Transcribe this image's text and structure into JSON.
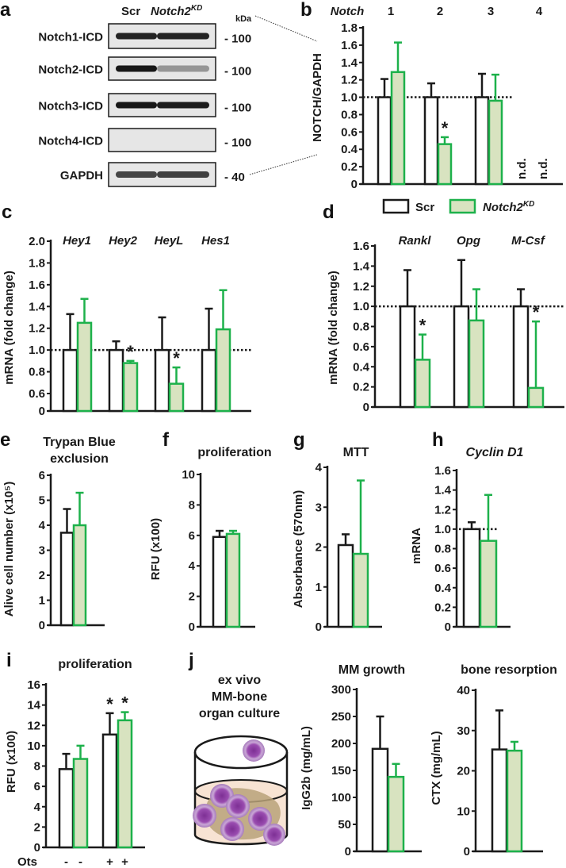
{
  "panel_letters": {
    "a": "a",
    "b": "b",
    "c": "c",
    "d": "d",
    "e": "e",
    "f": "f",
    "g": "g",
    "h": "h",
    "i": "i",
    "j": "j"
  },
  "colors": {
    "scr_stroke": "#1a1a1a",
    "scr_fill": "#ffffff",
    "kd_stroke": "#1db14b",
    "kd_fill": "#d8e3c0",
    "cell_fill": "#8e3fa0",
    "cell_edge": "#c9a6d6"
  },
  "blot": {
    "col_scr": "Scr",
    "col_kd_base": "Notch2",
    "col_kd_sup": "KD",
    "unit": "kDa",
    "rows": [
      {
        "label": "Notch1-ICD",
        "marker": "- 100"
      },
      {
        "label": "Notch2-ICD",
        "marker": "- 100"
      },
      {
        "label": "Notch3-ICD",
        "marker": "- 100"
      },
      {
        "label": "Notch4-ICD",
        "marker": "- 100"
      },
      {
        "label": "GAPDH",
        "marker": "- 40"
      }
    ]
  },
  "legend": {
    "scr": "Scr",
    "kd_base": "Notch2",
    "kd_sup": "KD"
  },
  "illustration": {
    "lines": [
      "ex vivo",
      "MM-bone",
      "organ culture"
    ]
  },
  "chart_data": [
    {
      "id": "b",
      "type": "bar",
      "header": "Notch",
      "title": "",
      "ylabel": "NOTCH/GAPDH",
      "ylim": [
        0,
        1.8
      ],
      "yticks": [
        "0",
        "0.2",
        "0.4",
        "0.6",
        "0.8",
        "1.0",
        "1.2",
        "1.4",
        "1.6",
        "1.8"
      ],
      "categories": [
        "1",
        "2",
        "3",
        "4"
      ],
      "reference_line": 1.0,
      "series": [
        {
          "name": "Scr",
          "values": [
            1.0,
            1.0,
            1.0,
            null
          ],
          "errors": [
            0.21,
            0.16,
            0.27,
            null
          ]
        },
        {
          "name": "Notch2KD",
          "values": [
            1.29,
            0.46,
            0.96,
            null
          ],
          "errors": [
            0.34,
            0.08,
            0.3,
            null
          ]
        }
      ],
      "significant": [
        {
          "category": 1,
          "series": 1,
          "mark": "*"
        }
      ],
      "not_detected": {
        "category": 3,
        "label": "n.d."
      }
    },
    {
      "id": "c",
      "type": "bar",
      "title": "",
      "ylabel": "mRNA (fold change)",
      "ylim": [
        0,
        2.0
      ],
      "axis_break": [
        0,
        0.6
      ],
      "yticks": [
        "0",
        "0.6",
        "0.8",
        "1.0",
        "1.2",
        "1.4",
        "1.6",
        "1.8",
        "2.0"
      ],
      "categories": [
        "Hey1",
        "Hey2",
        "HeyL",
        "Hes1"
      ],
      "reference_line": 1.0,
      "series": [
        {
          "name": "Scr",
          "values": [
            1.0,
            1.0,
            1.0,
            1.0
          ],
          "errors": [
            0.33,
            0.08,
            0.3,
            0.38
          ]
        },
        {
          "name": "Notch2KD",
          "values": [
            1.25,
            0.88,
            0.69,
            1.19
          ],
          "errors": [
            0.22,
            0.02,
            0.15,
            0.36
          ]
        }
      ],
      "significant": [
        {
          "category": 1,
          "series": 1,
          "mark": "*"
        },
        {
          "category": 2,
          "series": 1,
          "mark": "*"
        }
      ]
    },
    {
      "id": "d",
      "type": "bar",
      "title": "",
      "ylabel": "mRNA (fold change)",
      "ylim": [
        0,
        1.6
      ],
      "yticks": [
        "0",
        "0.2",
        "0.4",
        "0.6",
        "0.8",
        "1.0",
        "1.2",
        "1.4",
        "1.6"
      ],
      "categories": [
        "Rankl",
        "Opg",
        "M-Csf"
      ],
      "reference_line": 1.0,
      "series": [
        {
          "name": "Scr",
          "values": [
            1.0,
            1.0,
            1.0
          ],
          "errors": [
            0.36,
            0.46,
            0.17
          ]
        },
        {
          "name": "Notch2KD",
          "values": [
            0.47,
            0.86,
            0.19
          ],
          "errors": [
            0.25,
            0.31,
            0.66
          ]
        }
      ],
      "significant": [
        {
          "category": 0,
          "series": 1,
          "mark": "*"
        },
        {
          "category": 2,
          "series": 1,
          "mark": "*"
        }
      ]
    },
    {
      "id": "e",
      "type": "bar",
      "title": [
        "Trypan Blue",
        "exclusion"
      ],
      "ylabel": "Alive cell number (x10⁵)",
      "ylim": [
        0,
        6
      ],
      "yticks": [
        "0",
        "1",
        "2",
        "3",
        "4",
        "5",
        "6"
      ],
      "categories": [
        ""
      ],
      "series": [
        {
          "name": "Scr",
          "values": [
            3.7
          ],
          "errors": [
            0.95
          ]
        },
        {
          "name": "Notch2KD",
          "values": [
            4.0
          ],
          "errors": [
            1.3
          ]
        }
      ]
    },
    {
      "id": "f",
      "type": "bar",
      "title": [
        "proliferation"
      ],
      "ylabel": "RFU (x100)",
      "ylim": [
        0,
        10
      ],
      "yticks": [
        "0",
        "2",
        "4",
        "6",
        "8",
        "10"
      ],
      "categories": [
        ""
      ],
      "series": [
        {
          "name": "Scr",
          "values": [
            5.9
          ],
          "errors": [
            0.4
          ]
        },
        {
          "name": "Notch2KD",
          "values": [
            6.1
          ],
          "errors": [
            0.2
          ]
        }
      ]
    },
    {
      "id": "g",
      "type": "bar",
      "title": [
        "MTT"
      ],
      "ylabel": "Absorbance (570nm)",
      "ylim": [
        0,
        4
      ],
      "yticks": [
        "0",
        "1",
        "2",
        "3",
        "4"
      ],
      "categories": [
        ""
      ],
      "series": [
        {
          "name": "Scr",
          "values": [
            2.05
          ],
          "errors": [
            0.27
          ]
        },
        {
          "name": "Notch2KD",
          "values": [
            1.83
          ],
          "errors": [
            1.84
          ]
        }
      ]
    },
    {
      "id": "h",
      "type": "bar",
      "title": [
        "Cyclin D1"
      ],
      "title_italic": true,
      "ylabel": "mRNA",
      "ylim": [
        0,
        1.6
      ],
      "yticks": [
        "0",
        "0.2",
        "0.4",
        "0.6",
        "0.8",
        "1.0",
        "1.2",
        "1.4",
        "1.6"
      ],
      "categories": [
        ""
      ],
      "reference_line": 1.0,
      "series": [
        {
          "name": "Scr",
          "values": [
            1.0
          ],
          "errors": [
            0.07
          ]
        },
        {
          "name": "Notch2KD",
          "values": [
            0.88
          ],
          "errors": [
            0.47
          ]
        }
      ]
    },
    {
      "id": "i",
      "type": "bar",
      "title": [
        "proliferation"
      ],
      "ylabel": "RFU (x100)",
      "ylim": [
        0,
        16
      ],
      "yticks": [
        "0",
        "2",
        "4",
        "6",
        "8",
        "10",
        "12",
        "14",
        "16"
      ],
      "xlabel": "Ots",
      "categories": [
        "-",
        "+"
      ],
      "series": [
        {
          "name": "Scr",
          "values": [
            7.7,
            11.1
          ],
          "errors": [
            1.5,
            2.1
          ]
        },
        {
          "name": "Notch2KD",
          "values": [
            8.7,
            12.5
          ],
          "errors": [
            1.3,
            0.8
          ]
        }
      ],
      "significant": [
        {
          "category": 1,
          "series": 0,
          "mark": "*"
        },
        {
          "category": 1,
          "series": 1,
          "mark": "*"
        }
      ]
    },
    {
      "id": "j1",
      "type": "bar",
      "title": [
        "MM growth"
      ],
      "ylabel": "IgG2b (mg/mL)",
      "ylim": [
        0,
        300
      ],
      "yticks": [
        "0",
        "50",
        "100",
        "150",
        "200",
        "250",
        "300"
      ],
      "categories": [
        ""
      ],
      "series": [
        {
          "name": "Scr",
          "values": [
            190
          ],
          "errors": [
            60
          ]
        },
        {
          "name": "Notch2KD",
          "values": [
            138
          ],
          "errors": [
            24
          ]
        }
      ]
    },
    {
      "id": "j2",
      "type": "bar",
      "title": [
        "bone resorption"
      ],
      "ylabel": "CTX (mg/mL)",
      "ylim": [
        0,
        40
      ],
      "yticks": [
        "0",
        "10",
        "20",
        "30",
        "40"
      ],
      "categories": [
        ""
      ],
      "series": [
        {
          "name": "Scr",
          "values": [
            25.3
          ],
          "errors": [
            9.7
          ]
        },
        {
          "name": "Notch2KD",
          "values": [
            25.0
          ],
          "errors": [
            2.2
          ]
        }
      ]
    }
  ]
}
